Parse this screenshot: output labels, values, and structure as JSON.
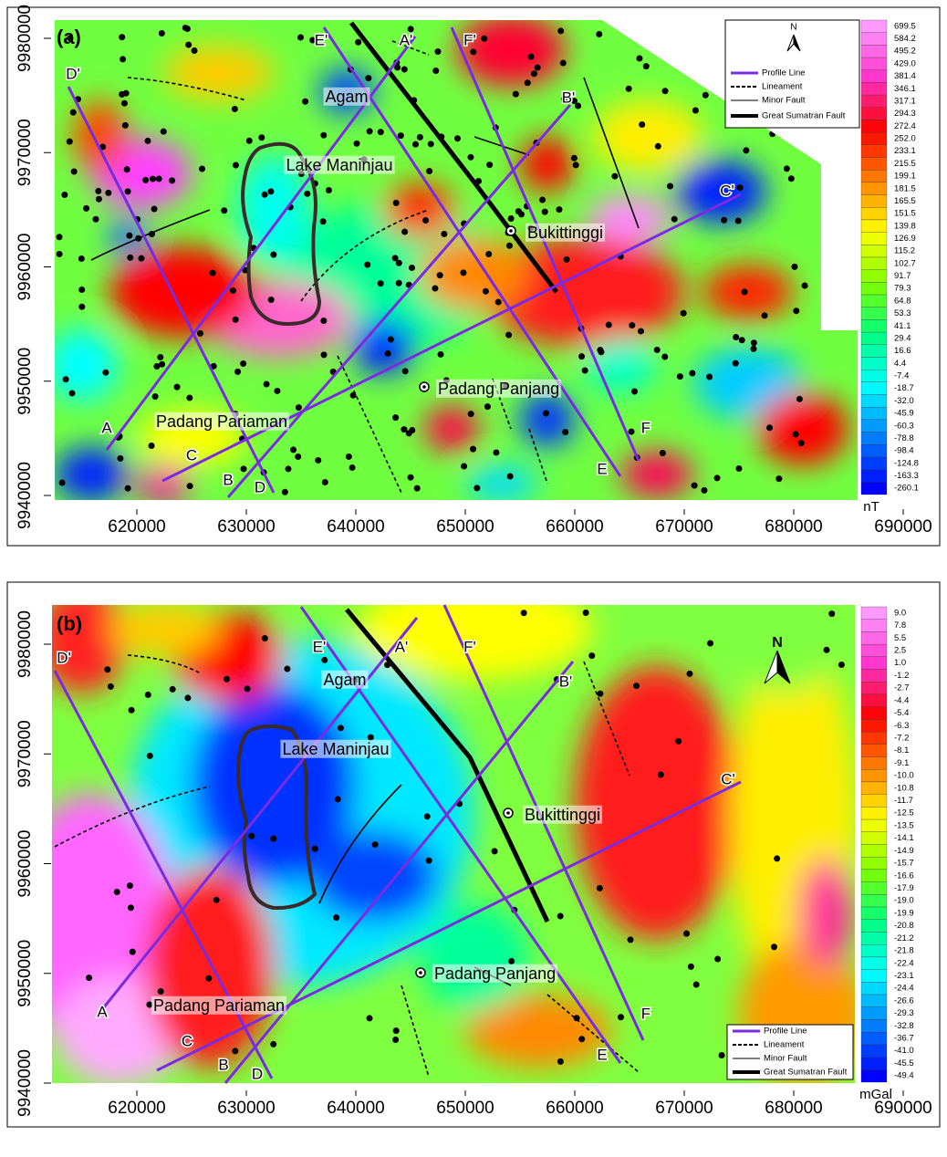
{
  "panels": [
    {
      "label": "(a)",
      "unit": "nT",
      "colorbar": [
        "699.5",
        "584.2",
        "495.2",
        "429.0",
        "381.4",
        "346.1",
        "317.1",
        "294.3",
        "272.4",
        "252.0",
        "233.1",
        "215.5",
        "199.1",
        "181.5",
        "165.5",
        "151.5",
        "139.8",
        "126.9",
        "115.2",
        "102.7",
        "91.7",
        "79.3",
        "64.8",
        "53.3",
        "41.1",
        "29.4",
        "16.6",
        "4.4",
        "-7.4",
        "-18.7",
        "-32.0",
        "-45.9",
        "-60.3",
        "-78.8",
        "-98.4",
        "-124.8",
        "-163.3",
        "-260.1"
      ],
      "xticks": [
        620000,
        630000,
        640000,
        650000,
        660000,
        670000,
        680000,
        690000
      ],
      "yticks": [
        9980000,
        9970000,
        9960000,
        9950000,
        9940000
      ],
      "places": [
        "Agam",
        "Lake Maninjau",
        "Bukittinggi",
        "Padang Panjang",
        "Padang Pariaman"
      ],
      "profiles": [
        "A",
        "A'",
        "B",
        "B'",
        "C",
        "C'",
        "D",
        "D'",
        "E",
        "E'",
        "F",
        "F'"
      ],
      "legend": [
        "Profile Line",
        "Lineament",
        "Minor Fault",
        "Great Sumatran Fault"
      ],
      "north": "N"
    },
    {
      "label": "(b)",
      "unit": "mGal",
      "colorbar": [
        "9.0",
        "7.8",
        "5.5",
        "2.5",
        "1.0",
        "-1.2",
        "-2.7",
        "-4.4",
        "-5.4",
        "-6.3",
        "-7.2",
        "-8.1",
        "-9.1",
        "-10.0",
        "-10.8",
        "-11.7",
        "-12.5",
        "-13.5",
        "-14.1",
        "-14.9",
        "-15.7",
        "-16.6",
        "-17.9",
        "-19.0",
        "-19.9",
        "-20.8",
        "-21.2",
        "-21.8",
        "-22.4",
        "-23.1",
        "-24.4",
        "-26.6",
        "-29.3",
        "-32.8",
        "-36.7",
        "-41.0",
        "-45.5",
        "-49.4"
      ],
      "xticks": [
        620000,
        630000,
        640000,
        650000,
        660000,
        670000,
        680000,
        690000
      ],
      "yticks": [
        9980000,
        9970000,
        9960000,
        9950000,
        9940000
      ],
      "places": [
        "Agam",
        "Lake Maninjau",
        "Bukittinggi",
        "Padang Panjang",
        "Padang Pariaman"
      ],
      "profiles": [
        "A",
        "A'",
        "B",
        "B'",
        "C",
        "C'",
        "D",
        "D'",
        "E",
        "E'",
        "F",
        "F'"
      ],
      "legend": [
        "Profile Line",
        "Lineament",
        "Minor Fault",
        "Great Sumatran Fault"
      ],
      "north": "N"
    }
  ]
}
